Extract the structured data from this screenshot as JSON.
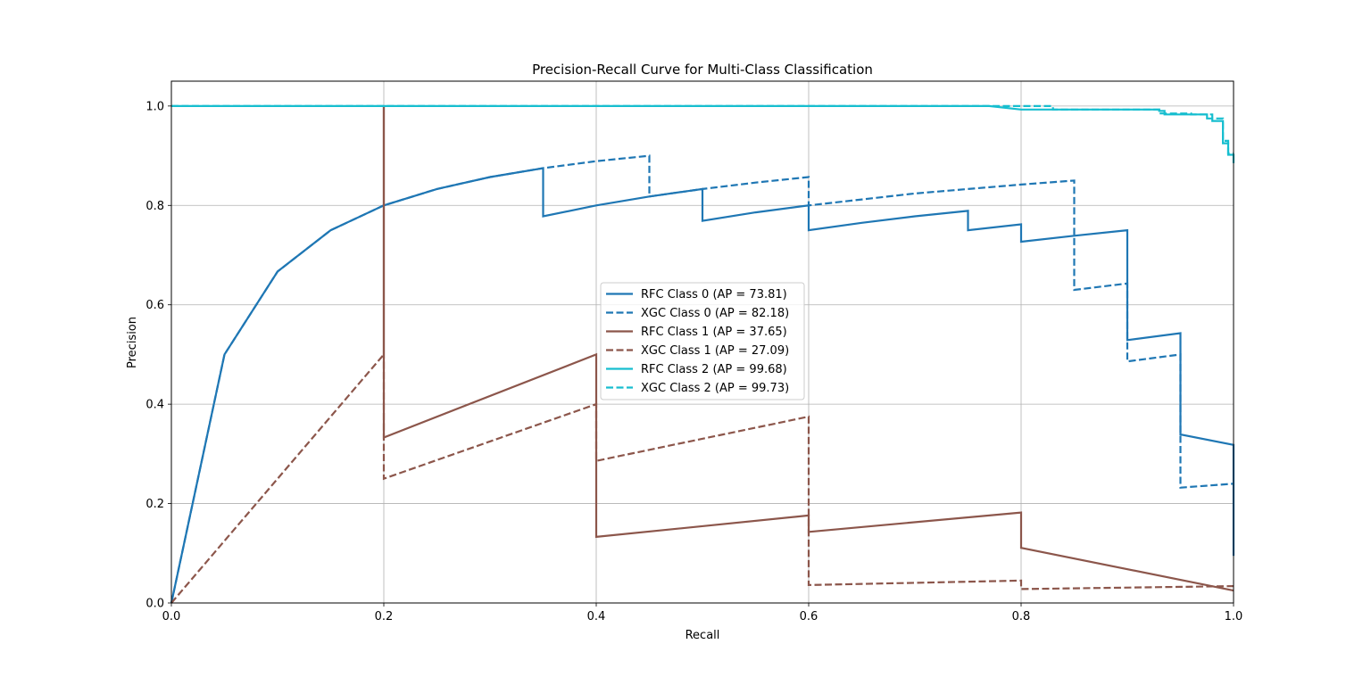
{
  "chart_data": {
    "type": "line",
    "title": "Precision-Recall Curve for Multi-Class Classification",
    "xlabel": "Recall",
    "ylabel": "Precision",
    "xlim": [
      0.0,
      1.0
    ],
    "ylim": [
      0.0,
      1.05
    ],
    "xticks": [
      "0.0",
      "0.2",
      "0.4",
      "0.6",
      "0.8",
      "1.0"
    ],
    "yticks": [
      "0.0",
      "0.2",
      "0.4",
      "0.6",
      "0.8",
      "1.0"
    ],
    "grid": true,
    "legend_position": "center",
    "colors": {
      "class0": "#1f77b4",
      "class1": "#8c564b",
      "class2": "#17becf"
    },
    "series": [
      {
        "name": "RFC Class 0 (AP = 73.81)",
        "color": "#1f77b4",
        "dash": "solid",
        "x": [
          0.0,
          0.05,
          0.1,
          0.15,
          0.2,
          0.25,
          0.3,
          0.35,
          0.35,
          0.4,
          0.45,
          0.5,
          0.5,
          0.55,
          0.6,
          0.6,
          0.65,
          0.7,
          0.75,
          0.75,
          0.8,
          0.8,
          0.85,
          0.9,
          0.9,
          0.95,
          0.95,
          1.0,
          1.0
        ],
        "y": [
          0.0,
          0.5,
          0.667,
          0.75,
          0.8,
          0.833,
          0.857,
          0.875,
          0.778,
          0.8,
          0.818,
          0.833,
          0.769,
          0.786,
          0.8,
          0.75,
          0.765,
          0.778,
          0.789,
          0.75,
          0.762,
          0.727,
          0.739,
          0.75,
          0.529,
          0.543,
          0.339,
          0.318,
          0.095
        ]
      },
      {
        "name": "XGC Class 0 (AP = 82.18)",
        "color": "#1f77b4",
        "dash": "dashed",
        "x": [
          0.0,
          0.05,
          0.1,
          0.15,
          0.2,
          0.25,
          0.3,
          0.35,
          0.4,
          0.45,
          0.45,
          0.5,
          0.55,
          0.6,
          0.6,
          0.65,
          0.7,
          0.75,
          0.8,
          0.85,
          0.85,
          0.9,
          0.9,
          0.95,
          0.95,
          1.0
        ],
        "y": [
          0.0,
          0.5,
          0.667,
          0.75,
          0.8,
          0.833,
          0.857,
          0.875,
          0.889,
          0.9,
          0.818,
          0.833,
          0.846,
          0.857,
          0.8,
          0.812,
          0.824,
          0.833,
          0.842,
          0.85,
          0.63,
          0.643,
          0.486,
          0.5,
          0.232,
          0.24
        ]
      },
      {
        "name": "RFC Class 1 (AP = 37.65)",
        "color": "#8c564b",
        "dash": "solid",
        "x": [
          0.2,
          0.2,
          0.4,
          0.4,
          0.6,
          0.6,
          0.8,
          0.8,
          1.0
        ],
        "y": [
          1.0,
          0.333,
          0.5,
          0.133,
          0.176,
          0.143,
          0.182,
          0.111,
          0.025
        ]
      },
      {
        "name": "XGC Class 1 (AP = 27.09)",
        "color": "#8c564b",
        "dash": "dashed",
        "x": [
          0.0,
          0.2,
          0.2,
          0.2,
          0.4,
          0.4,
          0.6,
          0.6,
          0.8,
          0.8,
          1.0
        ],
        "y": [
          0.0,
          0.5,
          1.0,
          0.25,
          0.4,
          0.286,
          0.375,
          0.036,
          0.045,
          0.028,
          0.034
        ]
      },
      {
        "name": "RFC Class 2 (AP = 99.68)",
        "color": "#17becf",
        "dash": "solid",
        "x": [
          0.0,
          0.77,
          0.8,
          0.93,
          0.93,
          0.935,
          0.935,
          0.96,
          0.96,
          0.975,
          0.975,
          0.98,
          0.98,
          0.99,
          0.99,
          0.995,
          0.995,
          1.0,
          1.0
        ],
        "y": [
          1.0,
          1.0,
          0.993,
          0.993,
          0.99,
          0.99,
          0.983,
          0.983,
          0.983,
          0.983,
          0.975,
          0.975,
          0.97,
          0.97,
          0.925,
          0.925,
          0.902,
          0.902,
          0.885
        ]
      },
      {
        "name": "XGC Class 2 (AP = 99.73)",
        "color": "#17becf",
        "dash": "dashed",
        "x": [
          0.0,
          0.78,
          0.79,
          0.83,
          0.83,
          0.93,
          0.93,
          0.96,
          0.96,
          0.98,
          0.98,
          0.99,
          0.99,
          0.995,
          0.995,
          1.0
        ],
        "y": [
          1.0,
          1.0,
          1.0,
          1.0,
          0.993,
          0.993,
          0.985,
          0.985,
          0.983,
          0.983,
          0.975,
          0.975,
          0.93,
          0.93,
          0.905,
          0.905
        ]
      }
    ]
  }
}
